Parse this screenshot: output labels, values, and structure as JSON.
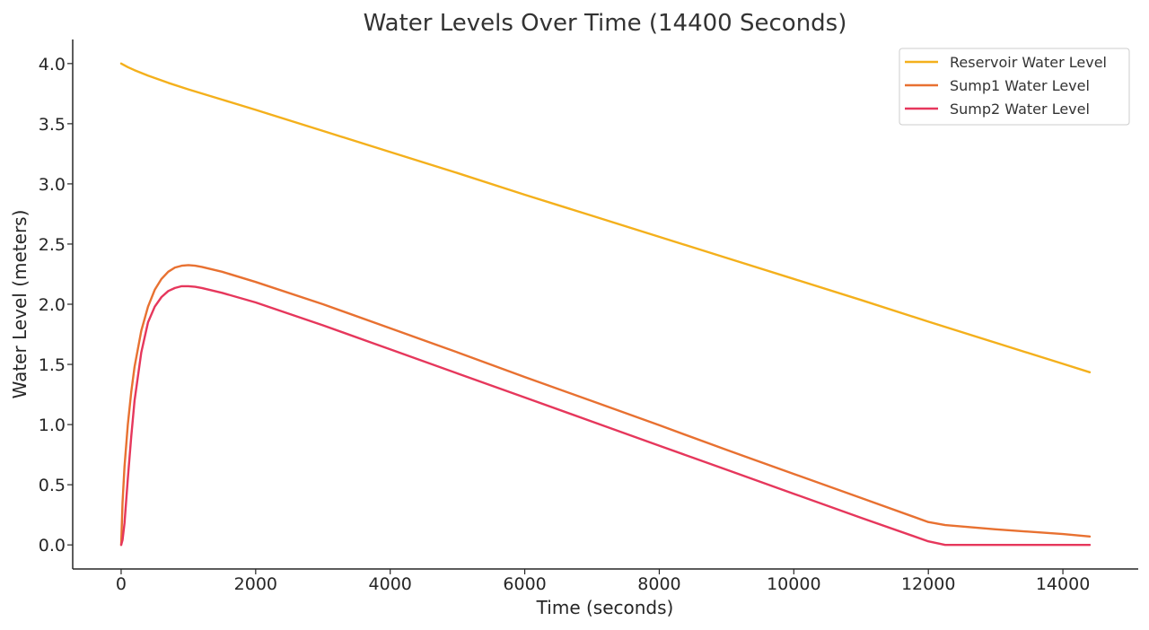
{
  "chart_data": {
    "type": "line",
    "title": "Water Levels Over Time (14400 Seconds)",
    "xlabel": "Time (seconds)",
    "ylabel": "Water Level (meters)",
    "xlim": [
      -720,
      15120
    ],
    "ylim": [
      -0.2,
      4.2
    ],
    "xticks": [
      0,
      2000,
      4000,
      6000,
      8000,
      10000,
      12000,
      14000
    ],
    "xtick_labels": [
      "0",
      "2000",
      "4000",
      "6000",
      "8000",
      "10000",
      "12000",
      "14000"
    ],
    "yticks": [
      0.0,
      0.5,
      1.0,
      1.5,
      2.0,
      2.5,
      3.0,
      3.5,
      4.0
    ],
    "ytick_labels": [
      "0.0",
      "0.5",
      "1.0",
      "1.5",
      "2.0",
      "2.5",
      "3.0",
      "3.5",
      "4.0"
    ],
    "grid": false,
    "legend_position": "top-right",
    "series": [
      {
        "name": "Reservoir Water Level",
        "color": "#f4b01c",
        "x": [
          0,
          100,
          200,
          400,
          700,
          1000,
          1500,
          2000,
          3000,
          4000,
          5000,
          6000,
          7000,
          8000,
          9000,
          10000,
          11000,
          12000,
          13000,
          14000,
          14400
        ],
        "y": [
          4.0,
          3.97,
          3.945,
          3.9,
          3.84,
          3.785,
          3.7,
          3.615,
          3.44,
          3.265,
          3.09,
          2.91,
          2.735,
          2.56,
          2.385,
          2.21,
          2.035,
          1.855,
          1.68,
          1.505,
          1.435
        ]
      },
      {
        "name": "Sump1 Water Level",
        "color": "#e87131",
        "x": [
          0,
          20,
          50,
          100,
          150,
          200,
          300,
          400,
          500,
          600,
          700,
          800,
          900,
          1000,
          1100,
          1200,
          1500,
          2000,
          3000,
          4000,
          5000,
          6000,
          7000,
          8000,
          9000,
          10000,
          11000,
          12000,
          12250,
          13000,
          14000,
          14400
        ],
        "y": [
          0.0,
          0.35,
          0.65,
          1.0,
          1.27,
          1.48,
          1.78,
          1.98,
          2.12,
          2.21,
          2.27,
          2.305,
          2.32,
          2.325,
          2.32,
          2.31,
          2.27,
          2.185,
          2.0,
          1.8,
          1.6,
          1.395,
          1.195,
          0.995,
          0.79,
          0.59,
          0.39,
          0.19,
          0.165,
          0.13,
          0.09,
          0.07
        ]
      },
      {
        "name": "Sump2 Water Level",
        "color": "#e6375c",
        "x": [
          0,
          20,
          50,
          100,
          150,
          200,
          300,
          400,
          500,
          600,
          700,
          800,
          900,
          1000,
          1100,
          1200,
          1500,
          2000,
          3000,
          4000,
          5000,
          6000,
          7000,
          8000,
          9000,
          10000,
          11000,
          12000,
          12250,
          13000,
          14000,
          14400
        ],
        "y": [
          0.0,
          0.04,
          0.18,
          0.55,
          0.9,
          1.2,
          1.6,
          1.85,
          1.98,
          2.06,
          2.11,
          2.135,
          2.15,
          2.15,
          2.145,
          2.135,
          2.095,
          2.015,
          1.825,
          1.625,
          1.425,
          1.225,
          1.025,
          0.825,
          0.625,
          0.425,
          0.225,
          0.03,
          0.0,
          0.0,
          0.0,
          0.0
        ]
      }
    ]
  }
}
